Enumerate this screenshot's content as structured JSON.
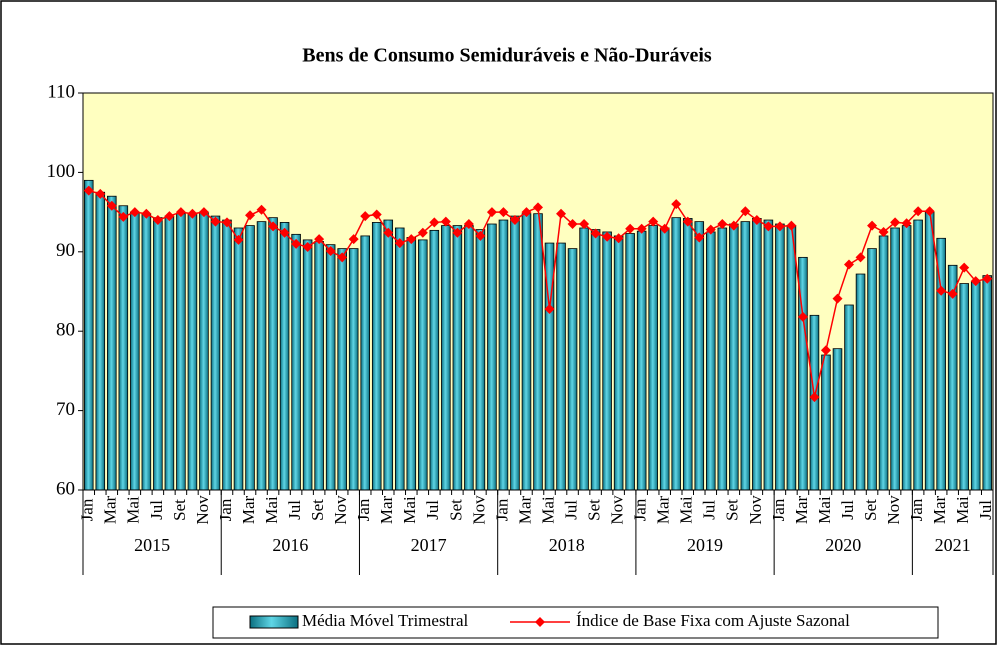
{
  "chart_data": {
    "type": "bar-line",
    "title": "Bens de Consumo  Semiduráveis e Não-Duráveis",
    "categories": [
      "Jan",
      null,
      "Mar",
      null,
      "Mai",
      null,
      "Jul",
      null,
      "Set",
      null,
      "Nov",
      null,
      "Jan",
      null,
      "Mar",
      null,
      "Mai",
      null,
      "Jul",
      null,
      "Set",
      null,
      "Nov",
      null,
      "Jan",
      null,
      "Mar",
      null,
      "Mai",
      null,
      "Jul",
      null,
      "Set",
      null,
      "Nov",
      null,
      "Jan",
      null,
      "Mar",
      null,
      "Mai",
      null,
      "Jul",
      null,
      "Set",
      null,
      "Nov",
      null,
      "Jan",
      null,
      "Mar",
      null,
      "Mai",
      null,
      "Jul",
      null,
      "Set",
      null,
      "Nov",
      null,
      "Jan",
      null,
      "Mar",
      null,
      "Mai",
      null,
      "Jul",
      null,
      "Set",
      null,
      "Nov",
      null,
      "Jan",
      null,
      "Mar",
      null,
      "Mai",
      null,
      "Jul"
    ],
    "years": [
      "2015",
      "2016",
      "2017",
      "2018",
      "2019",
      "2020",
      "2021"
    ],
    "series": [
      {
        "name": "Média Móvel Trimestral",
        "type": "bar",
        "color": "#1ba6bd",
        "values": [
          99.0,
          97.5,
          97.0,
          95.8,
          95.0,
          94.8,
          94.3,
          94.5,
          94.8,
          94.8,
          95.0,
          94.5,
          94.0,
          93.0,
          93.3,
          93.8,
          94.3,
          93.7,
          92.2,
          91.5,
          91.3,
          90.9,
          90.4,
          90.4,
          92.0,
          93.7,
          94.0,
          93.0,
          91.8,
          91.5,
          92.7,
          93.3,
          93.3,
          93.3,
          92.8,
          93.5,
          94.0,
          94.5,
          94.8,
          94.8,
          91.1,
          91.1,
          90.4,
          93.0,
          92.8,
          92.5,
          92.0,
          92.3,
          92.6,
          93.3,
          93.0,
          94.3,
          94.2,
          93.8,
          92.5,
          93.0,
          93.5,
          93.8,
          94.2,
          94.0,
          93.5,
          93.3,
          89.3,
          82.0,
          77.0,
          77.8,
          83.3,
          87.2,
          90.4,
          92.0,
          93.0,
          93.3,
          94.0,
          95.0,
          91.7,
          88.3,
          86.0,
          86.2,
          87.0
        ]
      },
      {
        "name": "Índice de Base Fixa com Ajuste Sazonal",
        "type": "line",
        "color": "#ff0000",
        "values": [
          97.7,
          97.3,
          95.8,
          94.4,
          95.0,
          94.8,
          94.0,
          94.5,
          95.0,
          94.8,
          95.0,
          93.8,
          93.7,
          91.5,
          94.6,
          95.3,
          93.2,
          92.4,
          91.0,
          90.6,
          91.6,
          90.1,
          89.3,
          91.6,
          94.5,
          94.7,
          92.4,
          91.1,
          91.6,
          92.4,
          93.7,
          93.8,
          92.4,
          93.5,
          92.0,
          95.0,
          95.0,
          94.0,
          95.0,
          95.6,
          82.8,
          94.8,
          93.5,
          93.5,
          92.3,
          91.9,
          91.7,
          92.9,
          92.9,
          93.8,
          92.9,
          96.0,
          93.8,
          91.8,
          92.8,
          93.5,
          93.3,
          95.1,
          94.0,
          93.2,
          93.2,
          93.3,
          81.8,
          71.7,
          77.6,
          84.1,
          88.4,
          89.3,
          93.3,
          92.5,
          93.7,
          93.6,
          95.1,
          95.1,
          85.1,
          84.7,
          88.0,
          86.3,
          86.6
        ]
      }
    ],
    "ylim": [
      60,
      110
    ],
    "yticks": [
      60,
      70,
      80,
      90,
      100,
      110
    ],
    "plot_background": "#ffffc0",
    "grid": false,
    "legend": "bottom"
  }
}
